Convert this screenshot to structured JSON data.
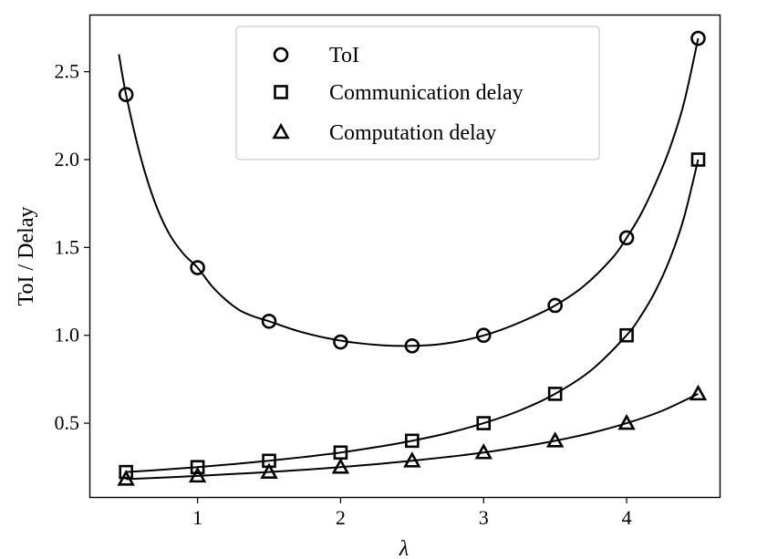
{
  "chart_data": {
    "type": "scatter",
    "title": "",
    "xlabel": "λ",
    "ylabel": "ToI / Delay",
    "xlim": [
      0.25,
      4.65
    ],
    "ylim": [
      0.08,
      2.82
    ],
    "xticks": [
      1,
      2,
      3,
      4
    ],
    "yticks": [
      0.5,
      1.0,
      1.5,
      2.0,
      2.5
    ],
    "xtick_labels": [
      "1",
      "2",
      "3",
      "4"
    ],
    "ytick_labels": [
      "0.5",
      "1.0",
      "1.5",
      "2.0",
      "2.5"
    ],
    "grid": false,
    "legend_position": "top-center",
    "x": [
      0.5,
      1.0,
      1.5,
      2.0,
      2.5,
      3.0,
      3.5,
      4.0,
      4.5
    ],
    "series": [
      {
        "name": "ToI",
        "marker": "circle",
        "values": [
          2.37,
          1.385,
          1.08,
          0.962,
          0.94,
          1.0,
          1.17,
          1.555,
          2.69
        ],
        "curve_x": [
          0.45,
          0.5,
          0.6,
          0.7,
          0.8,
          0.9,
          1.0,
          1.1,
          1.2,
          1.3,
          1.4,
          1.5,
          1.7,
          1.9,
          2.1,
          2.3,
          2.5,
          2.7,
          2.9,
          3.1,
          3.3,
          3.5,
          3.7,
          3.9,
          4.0,
          4.1,
          4.2,
          4.3,
          4.4,
          4.5
        ],
        "curve_y": [
          2.6,
          2.37,
          2.02,
          1.76,
          1.58,
          1.465,
          1.385,
          1.28,
          1.2,
          1.14,
          1.105,
          1.08,
          1.025,
          0.985,
          0.958,
          0.943,
          0.94,
          0.95,
          0.978,
          1.025,
          1.09,
          1.17,
          1.28,
          1.44,
          1.555,
          1.69,
          1.86,
          2.06,
          2.32,
          2.69
        ]
      },
      {
        "name": "Communication delay",
        "marker": "square",
        "values": [
          0.222,
          0.25,
          0.286,
          0.333,
          0.4,
          0.5,
          0.667,
          1.0,
          2.0
        ],
        "curve_x": [
          0.5,
          0.75,
          1.0,
          1.25,
          1.5,
          1.75,
          2.0,
          2.25,
          2.5,
          2.75,
          3.0,
          3.25,
          3.5,
          3.75,
          4.0,
          4.1,
          4.2,
          4.3,
          4.4,
          4.5
        ],
        "curve_y": [
          0.222,
          0.235,
          0.25,
          0.267,
          0.286,
          0.308,
          0.333,
          0.364,
          0.4,
          0.444,
          0.5,
          0.571,
          0.667,
          0.8,
          1.0,
          1.111,
          1.25,
          1.429,
          1.667,
          2.0
        ]
      },
      {
        "name": "Computation delay",
        "marker": "triangle",
        "values": [
          0.182,
          0.2,
          0.222,
          0.25,
          0.286,
          0.333,
          0.4,
          0.5,
          0.667
        ],
        "curve_x": [
          0.5,
          0.75,
          1.0,
          1.25,
          1.5,
          1.75,
          2.0,
          2.25,
          2.5,
          2.75,
          3.0,
          3.25,
          3.5,
          3.75,
          4.0,
          4.25,
          4.5
        ],
        "curve_y": [
          0.182,
          0.19,
          0.2,
          0.211,
          0.222,
          0.235,
          0.25,
          0.267,
          0.286,
          0.308,
          0.333,
          0.364,
          0.4,
          0.444,
          0.5,
          0.571,
          0.667
        ]
      }
    ]
  }
}
